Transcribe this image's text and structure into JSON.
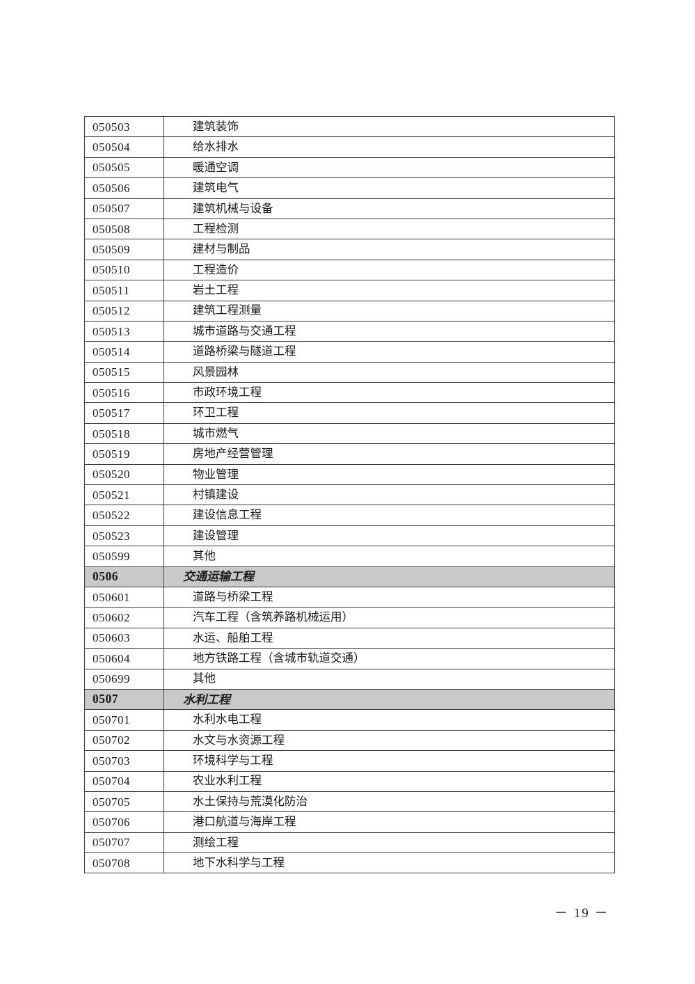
{
  "page": {
    "number_label": "－ 19 －"
  },
  "colors": {
    "section_bg": "#c9c9c9",
    "border": "#3a3a3a",
    "text": "#1a1a1a"
  },
  "table": {
    "columns": [
      "code",
      "name"
    ],
    "rows": [
      {
        "code": "050503",
        "name": "建筑装饰",
        "is_section": false
      },
      {
        "code": "050504",
        "name": "给水排水",
        "is_section": false
      },
      {
        "code": "050505",
        "name": "暖通空调",
        "is_section": false
      },
      {
        "code": "050506",
        "name": "建筑电气",
        "is_section": false
      },
      {
        "code": "050507",
        "name": "建筑机械与设备",
        "is_section": false
      },
      {
        "code": "050508",
        "name": "工程检测",
        "is_section": false
      },
      {
        "code": "050509",
        "name": "建材与制品",
        "is_section": false
      },
      {
        "code": "050510",
        "name": "工程造价",
        "is_section": false
      },
      {
        "code": "050511",
        "name": "岩土工程",
        "is_section": false
      },
      {
        "code": "050512",
        "name": "建筑工程测量",
        "is_section": false
      },
      {
        "code": "050513",
        "name": "城市道路与交通工程",
        "is_section": false
      },
      {
        "code": "050514",
        "name": "道路桥梁与隧道工程",
        "is_section": false
      },
      {
        "code": "050515",
        "name": "风景园林",
        "is_section": false
      },
      {
        "code": "050516",
        "name": "市政环境工程",
        "is_section": false
      },
      {
        "code": "050517",
        "name": "环卫工程",
        "is_section": false
      },
      {
        "code": "050518",
        "name": "城市燃气",
        "is_section": false
      },
      {
        "code": "050519",
        "name": "房地产经营管理",
        "is_section": false
      },
      {
        "code": "050520",
        "name": "物业管理",
        "is_section": false
      },
      {
        "code": "050521",
        "name": "村镇建设",
        "is_section": false
      },
      {
        "code": "050522",
        "name": "建设信息工程",
        "is_section": false
      },
      {
        "code": "050523",
        "name": "建设管理",
        "is_section": false
      },
      {
        "code": "050599",
        "name": "其他",
        "is_section": false
      },
      {
        "code": "0506",
        "name": "交通运输工程",
        "is_section": true
      },
      {
        "code": "050601",
        "name": "道路与桥梁工程",
        "is_section": false
      },
      {
        "code": "050602",
        "name": "汽车工程（含筑养路机械运用）",
        "is_section": false
      },
      {
        "code": "050603",
        "name": "水运、船舶工程",
        "is_section": false
      },
      {
        "code": "050604",
        "name": "地方铁路工程（含城市轨道交通）",
        "is_section": false
      },
      {
        "code": "050699",
        "name": "其他",
        "is_section": false
      },
      {
        "code": "0507",
        "name": "水利工程",
        "is_section": true
      },
      {
        "code": "050701",
        "name": "水利水电工程",
        "is_section": false
      },
      {
        "code": "050702",
        "name": "水文与水资源工程",
        "is_section": false
      },
      {
        "code": "050703",
        "name": "环境科学与工程",
        "is_section": false
      },
      {
        "code": "050704",
        "name": "农业水利工程",
        "is_section": false
      },
      {
        "code": "050705",
        "name": "水土保持与荒漠化防治",
        "is_section": false
      },
      {
        "code": "050706",
        "name": "港口航道与海岸工程",
        "is_section": false
      },
      {
        "code": "050707",
        "name": "测绘工程",
        "is_section": false
      },
      {
        "code": "050708",
        "name": "地下水科学与工程",
        "is_section": false
      }
    ]
  }
}
